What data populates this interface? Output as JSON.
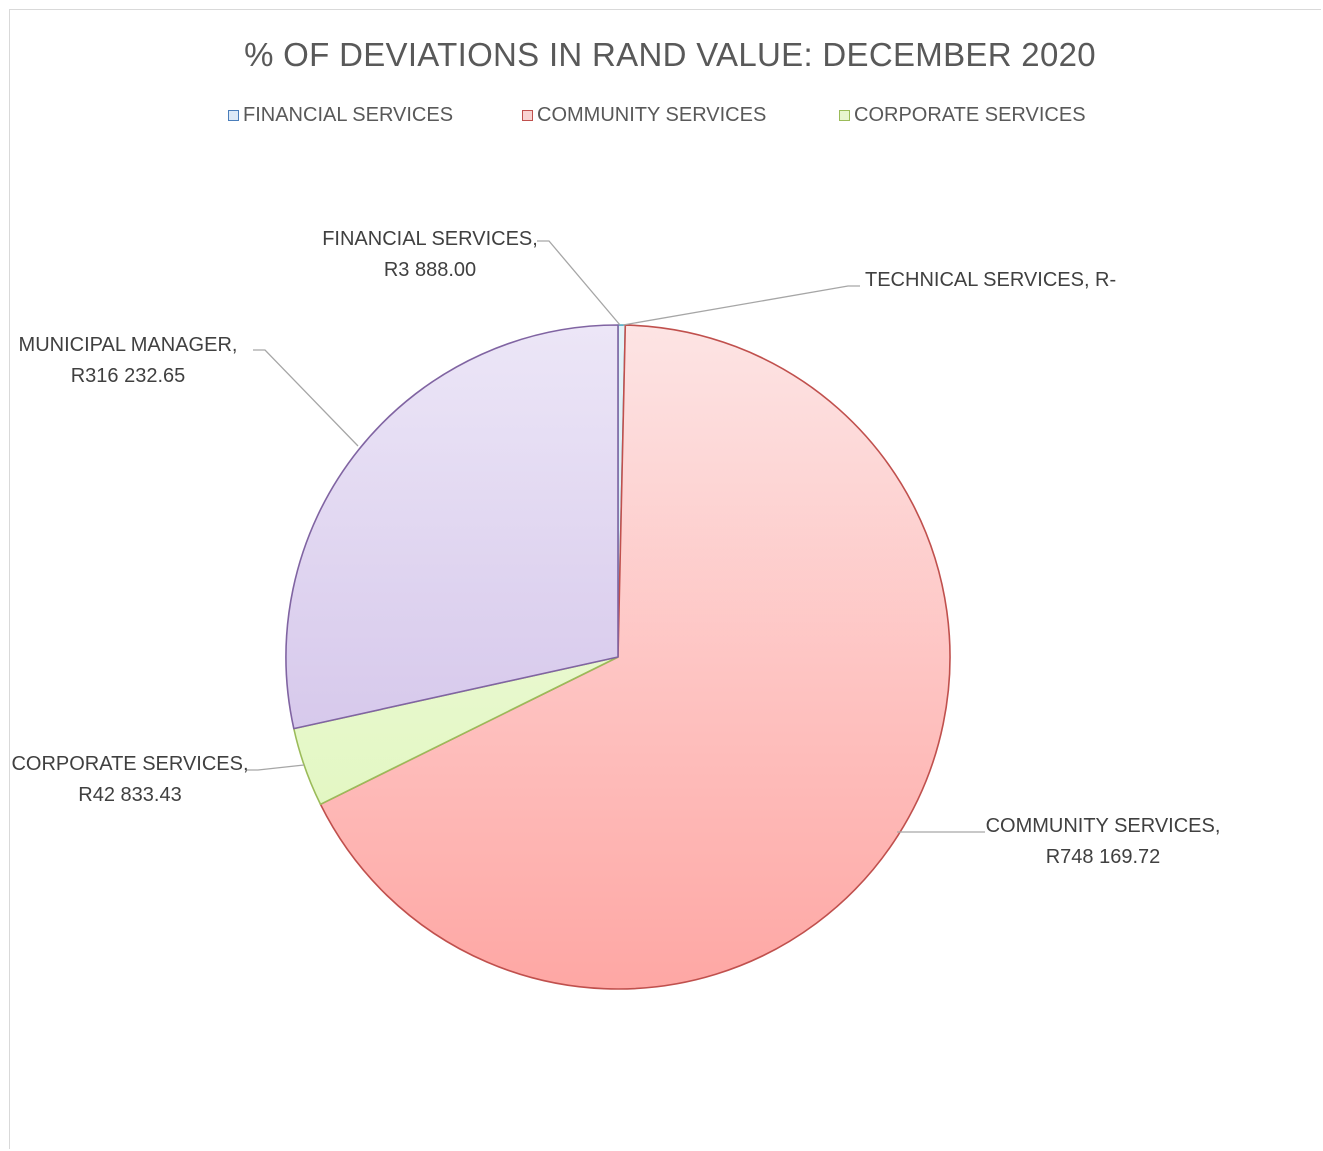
{
  "chart_data": {
    "type": "pie",
    "title": "% OF DEVIATIONS IN RAND VALUE: DECEMBER 2020",
    "legend_position": "top",
    "legend": [
      {
        "label": "FINANCIAL SERVICES",
        "color": "#4a7ebb",
        "fill": "#dce9f7"
      },
      {
        "label": "COMMUNITY SERVICES",
        "color": "#c0504d",
        "fill": "#f9d3d2"
      },
      {
        "label": "CORPORATE SERVICES",
        "color": "#9bbb59",
        "fill": "#e8f5cf"
      }
    ],
    "slices": [
      {
        "name": "FINANCIAL SERVICES",
        "value": 3888.0,
        "display": "R3 888.00",
        "color": "#4bacc6",
        "fill_top": "#e3f2f8",
        "fill_bottom": "#cbe6f1"
      },
      {
        "name": "TECHNICAL SERVICES",
        "value": 0,
        "display": "R-",
        "color": "#f79646",
        "fill_top": "#fde7d6",
        "fill_bottom": "#fbd4b6"
      },
      {
        "name": "COMMUNITY SERVICES",
        "value": 748169.72,
        "display": "R748 169.72",
        "color": "#c0504d",
        "fill_top": "#fde4e4",
        "fill_bottom": "#fea7a4"
      },
      {
        "name": "CORPORATE SERVICES",
        "value": 42833.43,
        "display": "R42 833.43",
        "color": "#9bbb59",
        "fill_top": "#f5fce8",
        "fill_bottom": "#dcf5b5"
      },
      {
        "name": "MUNICIPAL MANAGER",
        "value": 316232.65,
        "display": "R316 232.65",
        "color": "#8064a2",
        "fill_top": "#ece6f7",
        "fill_bottom": "#c9b6e4"
      }
    ]
  }
}
